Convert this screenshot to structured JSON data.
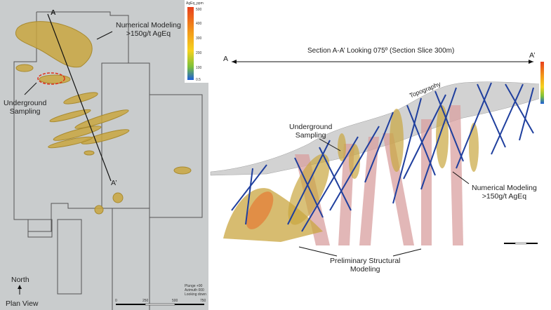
{
  "plan_view": {
    "section_start": "A",
    "section_end": "A’",
    "callout_model": [
      "Numerical Modeling",
      ">150g/t AgEq"
    ],
    "callout_sampling": [
      "Underground",
      "Sampling"
    ],
    "north_label": "North",
    "title": "Plan View",
    "view_info": [
      "Plunge +90",
      "Azimuth 000",
      "Looking down"
    ],
    "scale_ticks": [
      "0",
      "250",
      "500",
      "750"
    ],
    "legend": {
      "title": "AgEq_ppm",
      "ticks": [
        "500",
        "400",
        "300",
        "200",
        "100",
        "0.5"
      ],
      "colors": [
        "#e8401c",
        "#f39c1a",
        "#f5d21e",
        "#7cc13a",
        "#1d5ed8"
      ]
    }
  },
  "section_view": {
    "title": "Section A-A’ Looking 075º (Section Slice 300m)",
    "start": "A",
    "end": "A’",
    "label_topography": "Topography",
    "callout_sampling": [
      "Underground",
      "Sampling"
    ],
    "callout_model": [
      "Numerical Modeling",
      ">150g/t AgEq"
    ],
    "callout_structural": [
      "Preliminary Structural",
      "Modeling"
    ]
  },
  "colors": {
    "map_bg": "#c9cccd",
    "drillhole": "#1f3f9e",
    "fault": "#d9a0a0",
    "orebody": "#c9a640"
  }
}
